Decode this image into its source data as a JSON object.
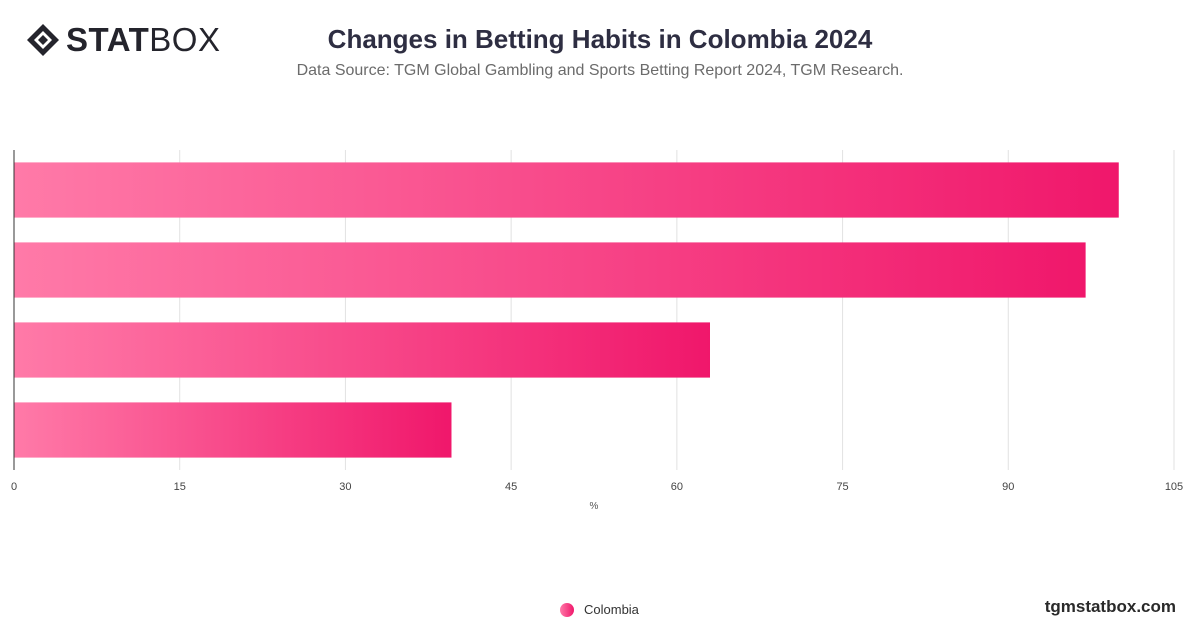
{
  "brand": {
    "logo_bold": "STAT",
    "logo_thin": "BOX",
    "site": "tgmstatbox.com"
  },
  "header": {
    "title": "Changes in Betting Habits in Colombia 2024",
    "subtitle": "Data Source: TGM Global Gambling and Sports Betting Report 2024, TGM Research."
  },
  "chart_data": {
    "type": "bar",
    "orientation": "horizontal",
    "title": "Changes in Betting Habits in Colombia 2024",
    "xlabel": "%",
    "ylabel": "",
    "xlim": [
      0,
      105
    ],
    "xticks": [
      0,
      15,
      30,
      45,
      60,
      75,
      90,
      105
    ],
    "grid": true,
    "legend_position": "bottom-center",
    "series": [
      {
        "name": "Colombia",
        "values": [
          100,
          97,
          63,
          39.6
        ],
        "color_start": "#ff7aa8",
        "color_end": "#f0176b"
      }
    ]
  },
  "legend": {
    "items": [
      {
        "label": "Colombia"
      }
    ]
  }
}
